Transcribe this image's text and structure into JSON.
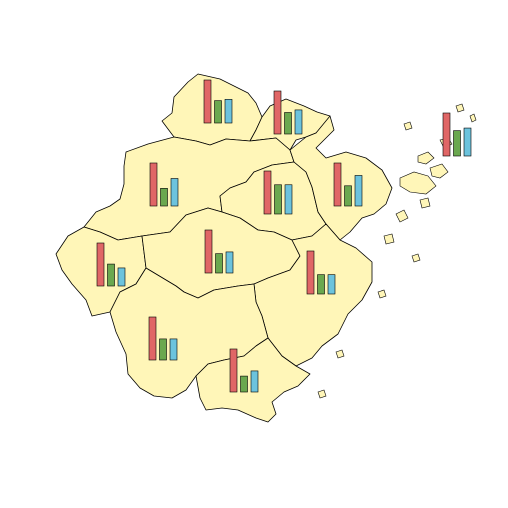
{
  "map": {
    "fill_color": "#FFF6B8",
    "border_color": "#000000",
    "series_colors": [
      "#E06666",
      "#6AA84F",
      "#6CC3DD"
    ],
    "regions": [
      {
        "id": "huzhou",
        "values": [
          1.0,
          0.52,
          0.55
        ]
      },
      {
        "id": "jiaxing",
        "values": [
          1.0,
          0.5,
          0.56
        ]
      },
      {
        "id": "hangzhou",
        "values": [
          1.0,
          0.41,
          0.64
        ]
      },
      {
        "id": "shaoxing",
        "values": [
          1.0,
          0.68,
          0.68
        ]
      },
      {
        "id": "ningbo",
        "values": [
          1.0,
          0.47,
          0.71
        ]
      },
      {
        "id": "zhoushan",
        "values": [
          1.0,
          0.59,
          0.65
        ]
      },
      {
        "id": "quzhou",
        "values": [
          1.0,
          0.51,
          0.42
        ]
      },
      {
        "id": "jinhua",
        "values": [
          1.0,
          0.45,
          0.49
        ]
      },
      {
        "id": "taizhou",
        "values": [
          1.0,
          0.45,
          0.45
        ]
      },
      {
        "id": "lishui",
        "values": [
          1.0,
          0.49,
          0.49
        ]
      },
      {
        "id": "wenzhou",
        "values": [
          1.0,
          0.37,
          0.49
        ]
      }
    ]
  }
}
